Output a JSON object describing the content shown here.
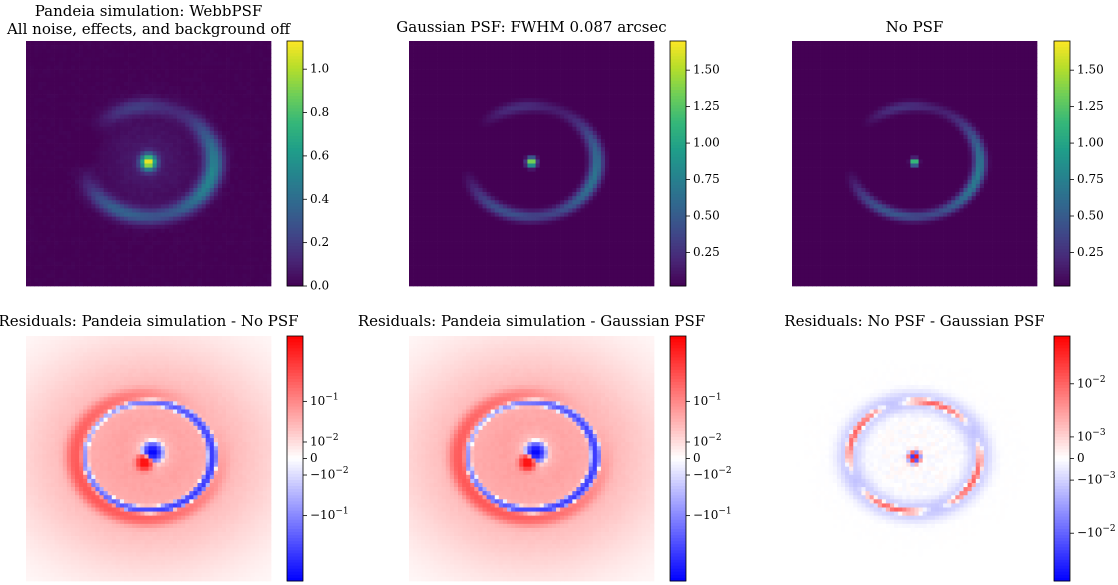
{
  "chart_data": [
    {
      "type": "heatmap",
      "title_lines": [
        "Pandeia simulation: WebbPSF",
        "All noise, effects, and background off"
      ],
      "colormap": "viridis",
      "vmin": 0.0,
      "vmax": 1.13,
      "colorbar_ticks": [
        0.0,
        0.2,
        0.4,
        0.6,
        0.8,
        1.0
      ],
      "colorbar_tick_labels": [
        "0.0",
        "0.2",
        "0.4",
        "0.6",
        "0.8",
        "1.0"
      ],
      "model": {
        "kind": "lens",
        "ring_amp": 0.42,
        "core_amp": 1.1,
        "core_sigma": 1.3,
        "halo_amp": 0.08,
        "blur": 1.9
      }
    },
    {
      "type": "heatmap",
      "title_lines": [
        "Gaussian PSF: FWHM 0.087 arcsec"
      ],
      "colormap": "viridis",
      "vmin": 0.02,
      "vmax": 1.7,
      "colorbar_ticks": [
        0.25,
        0.5,
        0.75,
        1.0,
        1.25,
        1.5
      ],
      "colorbar_tick_labels": [
        "0.25",
        "0.50",
        "0.75",
        "1.00",
        "1.25",
        "1.50"
      ],
      "model": {
        "kind": "lens",
        "ring_amp": 0.55,
        "core_amp": 1.68,
        "core_sigma": 0.8,
        "halo_amp": 0.0,
        "blur": 1.1
      }
    },
    {
      "type": "heatmap",
      "title_lines": [
        "No PSF"
      ],
      "colormap": "viridis",
      "vmin": 0.02,
      "vmax": 1.7,
      "colorbar_ticks": [
        0.25,
        0.5,
        0.75,
        1.0,
        1.25,
        1.5
      ],
      "colorbar_tick_labels": [
        "0.25",
        "0.50",
        "0.75",
        "1.00",
        "1.25",
        "1.50"
      ],
      "model": {
        "kind": "lens",
        "ring_amp": 0.6,
        "core_amp": 1.7,
        "core_sigma": 0.6,
        "halo_amp": 0.0,
        "blur": 0.8
      }
    },
    {
      "type": "heatmap",
      "title_lines": [
        "Residuals: Pandeia simulation - No PSF"
      ],
      "colormap": "bwr",
      "scale": "symlog",
      "linthresh": 0.01,
      "vmin": -1.7,
      "vmax": 1.7,
      "colorbar_ticks": [
        0.1,
        0.01,
        0.0,
        -0.01,
        -0.1
      ],
      "colorbar_tick_labels": [
        "10^-1",
        "10^-2",
        "0",
        "-10^-2",
        "-10^-1"
      ],
      "model": {
        "kind": "residual",
        "pair": "sim-nopsf"
      }
    },
    {
      "type": "heatmap",
      "title_lines": [
        "Residuals: Pandeia simulation - Gaussian PSF"
      ],
      "colormap": "bwr",
      "scale": "symlog",
      "linthresh": 0.01,
      "vmin": -1.7,
      "vmax": 1.7,
      "colorbar_ticks": [
        0.1,
        0.01,
        0.0,
        -0.01,
        -0.1
      ],
      "colorbar_tick_labels": [
        "10^-1",
        "10^-2",
        "0",
        "-10^-2",
        "-10^-1"
      ],
      "model": {
        "kind": "residual",
        "pair": "sim-gauss"
      }
    },
    {
      "type": "heatmap",
      "title_lines": [
        "Residuals: No PSF - Gaussian PSF"
      ],
      "colormap": "bwr",
      "scale": "symlog",
      "linthresh": 0.001,
      "vmin": -0.05,
      "vmax": 0.05,
      "colorbar_ticks": [
        0.01,
        0.001,
        0.0,
        -0.001,
        -0.01
      ],
      "colorbar_tick_labels": [
        "10^-2",
        "10^-3",
        "0",
        "-10^-3",
        "-10^-2"
      ],
      "model": {
        "kind": "residual",
        "pair": "nopsf-gauss"
      }
    }
  ]
}
